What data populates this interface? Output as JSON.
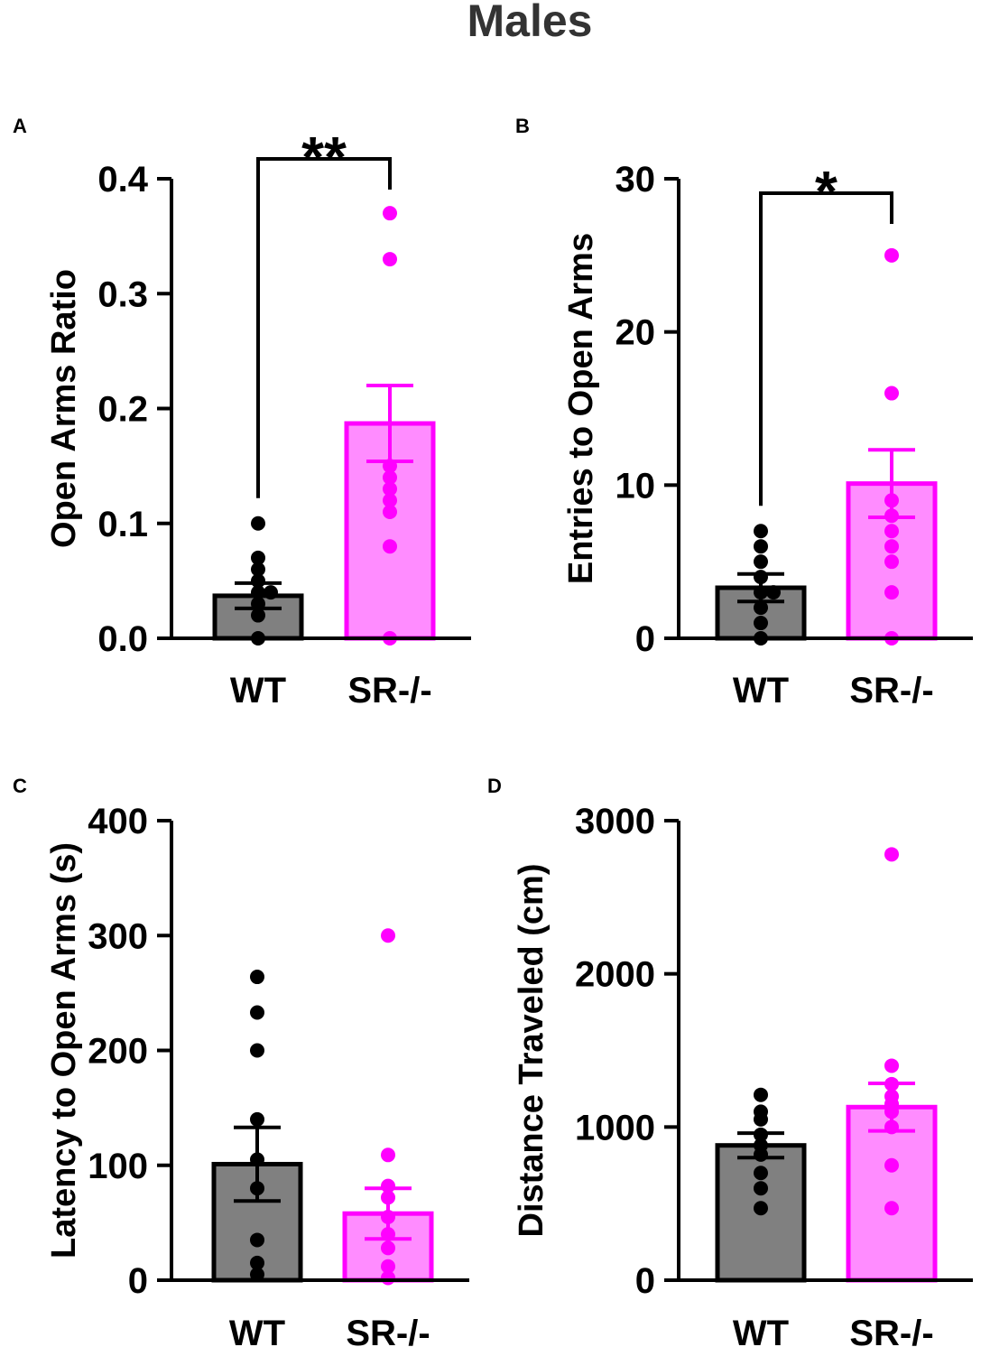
{
  "figure_title": "Males",
  "colors": {
    "wt_fill": "#808080",
    "sr_fill": "#ff8cff",
    "sr_edge": "#ff00ff",
    "sr_point": "#ff00ff",
    "wt_point": "#000000",
    "axis": "#000000",
    "title": "#333333"
  },
  "chart_data": [
    {
      "panel": "A",
      "type": "bar",
      "ylabel": "Open Arms Ratio",
      "categories": [
        "WT",
        "SR-/-"
      ],
      "ylim": [
        0,
        0.4
      ],
      "yticks": [
        "0.0",
        "0.1",
        "0.2",
        "0.3",
        "0.4"
      ],
      "ytick_values": [
        0,
        0.1,
        0.2,
        0.3,
        0.4
      ],
      "means": [
        0.037,
        0.187
      ],
      "sem": [
        0.011,
        0.033
      ],
      "points": [
        [
          0.1,
          0.07,
          0.06,
          0.05,
          0.04,
          0.04,
          0.03,
          0.02,
          0.0
        ],
        [
          0.37,
          0.33,
          0.15,
          0.14,
          0.13,
          0.12,
          0.11,
          0.08,
          0.0
        ]
      ],
      "significance": "**"
    },
    {
      "panel": "B",
      "type": "bar",
      "ylabel": "Entries to Open Arms",
      "categories": [
        "WT",
        "SR-/-"
      ],
      "ylim": [
        0,
        30
      ],
      "yticks": [
        "0",
        "10",
        "20",
        "30"
      ],
      "ytick_values": [
        0,
        10,
        20,
        30
      ],
      "means": [
        3.3,
        10.1
      ],
      "sem": [
        0.9,
        2.2
      ],
      "points": [
        [
          7,
          6,
          5,
          4,
          3,
          3,
          2,
          1,
          0
        ],
        [
          25,
          16,
          9,
          8,
          7,
          6,
          5,
          3,
          0
        ]
      ],
      "significance": "*"
    },
    {
      "panel": "C",
      "type": "bar",
      "ylabel": "Latency to Open Arms (s)",
      "categories": [
        "WT",
        "SR-/-"
      ],
      "ylim": [
        0,
        400
      ],
      "yticks": [
        "0",
        "100",
        "200",
        "300",
        "400"
      ],
      "ytick_values": [
        0,
        100,
        200,
        300,
        400
      ],
      "means": [
        101,
        58
      ],
      "sem": [
        32,
        22
      ],
      "points": [
        [
          264,
          233,
          200,
          140,
          105,
          80,
          35,
          15,
          5
        ],
        [
          300,
          109,
          82,
          72,
          55,
          40,
          28,
          12,
          2
        ]
      ],
      "significance": ""
    },
    {
      "panel": "D",
      "type": "bar",
      "ylabel": "Distance Traveled (cm)",
      "categories": [
        "WT",
        "SR-/-"
      ],
      "ylim": [
        0,
        3000
      ],
      "yticks": [
        "0",
        "1000",
        "2000",
        "3000"
      ],
      "ytick_values": [
        0,
        1000,
        2000,
        3000
      ],
      "means": [
        880,
        1130
      ],
      "sem": [
        80,
        155
      ],
      "points": [
        [
          1210,
          1100,
          1050,
          950,
          880,
          820,
          700,
          600,
          470
        ],
        [
          2780,
          1400,
          1280,
          1200,
          1150,
          1100,
          1000,
          750,
          470
        ]
      ],
      "significance": ""
    }
  ]
}
